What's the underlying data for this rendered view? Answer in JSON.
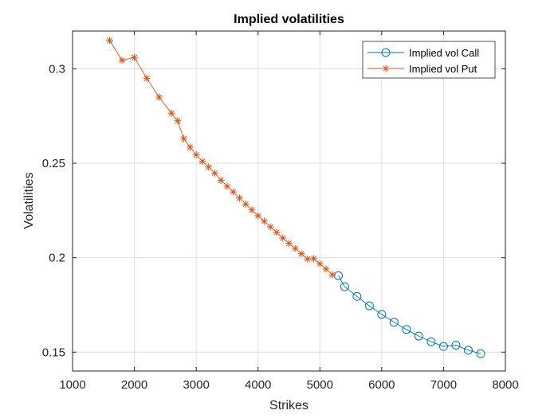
{
  "chart_data": {
    "type": "line",
    "title": "Implied volatilities",
    "xlabel": "Strikes",
    "ylabel": "Volatilities",
    "xlim": [
      1000,
      8000
    ],
    "ylim": [
      0.14,
      0.32
    ],
    "xticks": [
      1000,
      2000,
      3000,
      4000,
      5000,
      6000,
      7000,
      8000
    ],
    "yticks": [
      0.15,
      0.2,
      0.25,
      0.3
    ],
    "ytick_labels": [
      "0.15",
      "0.2",
      "0.25",
      "0.3"
    ],
    "grid": true,
    "legend_position": "top-right",
    "series": [
      {
        "name": "Implied vol Call",
        "color": "#0072BD",
        "marker": "circle",
        "x": [
          5300,
          5400,
          5600,
          5800,
          6000,
          6200,
          6400,
          6600,
          6800,
          7000,
          7200,
          7400,
          7600
        ],
        "y": [
          0.1905,
          0.1847,
          0.1795,
          0.1745,
          0.17,
          0.1658,
          0.162,
          0.1585,
          0.1555,
          0.153,
          0.1537,
          0.151,
          0.1492
        ]
      },
      {
        "name": "Implied vol Put",
        "color": "#D95319",
        "marker": "asterisk",
        "x": [
          1600,
          1800,
          2000,
          2200,
          2400,
          2600,
          2700,
          2800,
          2900,
          3000,
          3100,
          3200,
          3300,
          3400,
          3500,
          3600,
          3700,
          3800,
          3900,
          4000,
          4100,
          4200,
          4300,
          4400,
          4500,
          4600,
          4700,
          4800,
          4900,
          5000,
          5100,
          5200
        ],
        "y": [
          0.315,
          0.3045,
          0.306,
          0.295,
          0.285,
          0.2765,
          0.2725,
          0.263,
          0.2585,
          0.2545,
          0.251,
          0.248,
          0.2448,
          0.241,
          0.2378,
          0.2348,
          0.2316,
          0.2284,
          0.2253,
          0.2222,
          0.2193,
          0.2163,
          0.2134,
          0.2104,
          0.2076,
          0.2049,
          0.2021,
          0.1993,
          0.1995,
          0.1968,
          0.194,
          0.191
        ]
      }
    ]
  }
}
